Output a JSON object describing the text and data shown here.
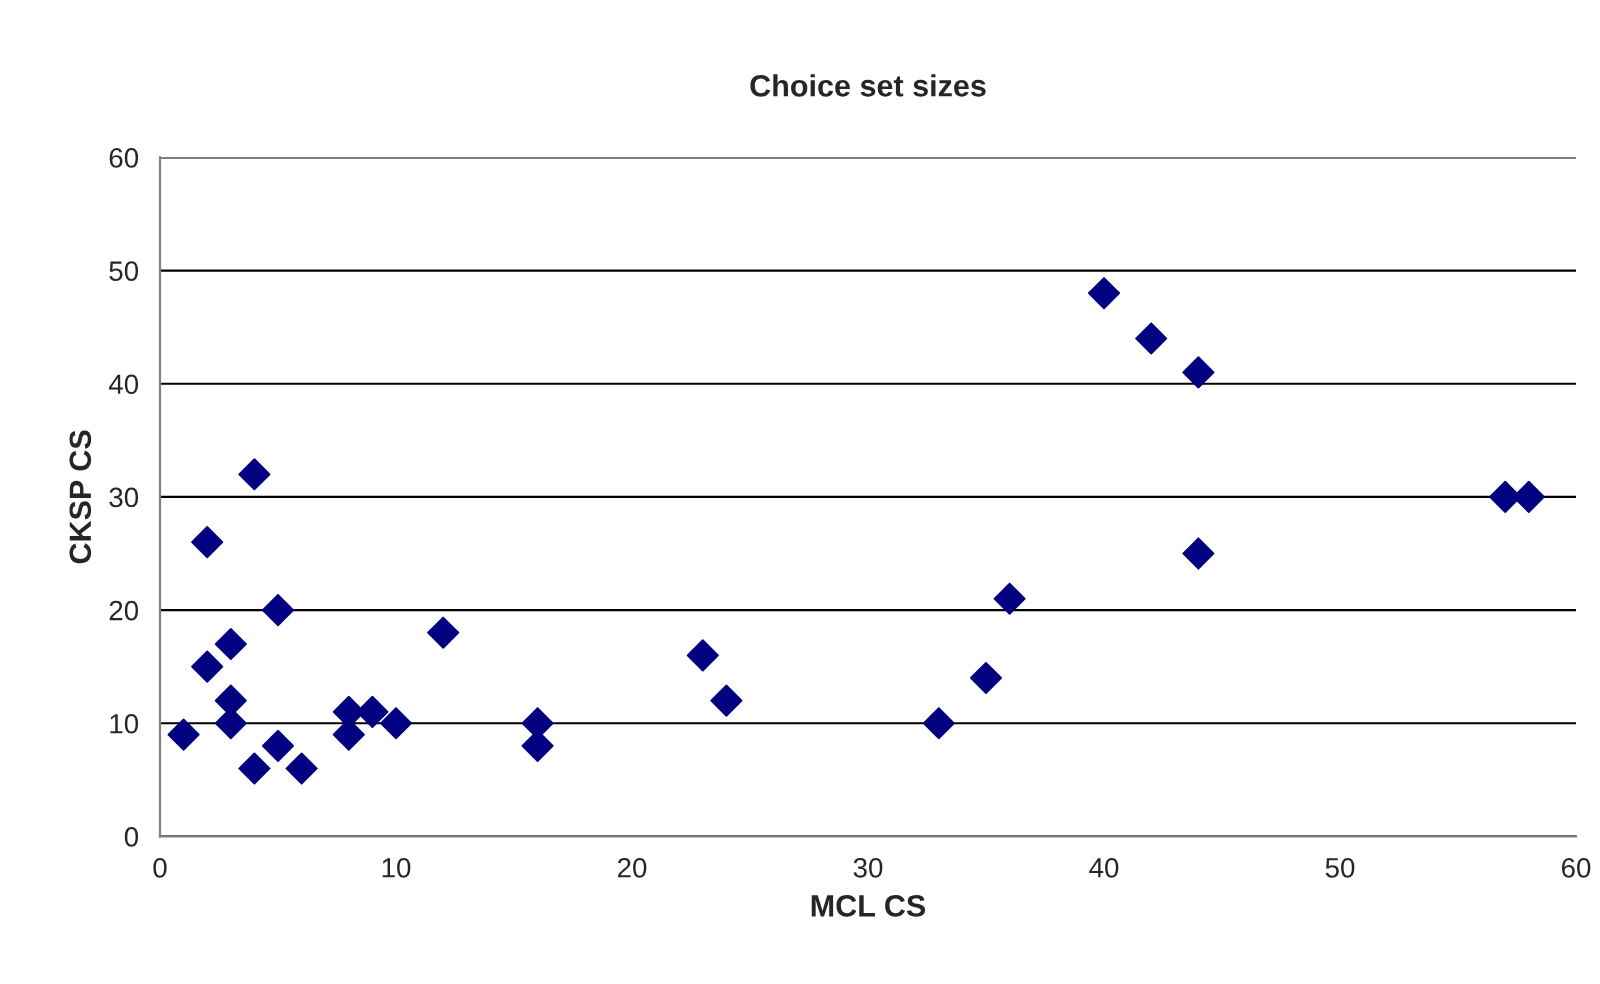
{
  "chart_data": {
    "type": "scatter",
    "title": "Choice set sizes",
    "xlabel": "MCL CS",
    "ylabel": "CKSP CS",
    "x": [
      1,
      2,
      2,
      3,
      3,
      3,
      4,
      4,
      5,
      5,
      6,
      8,
      8,
      9,
      10,
      12,
      16,
      16,
      23,
      24,
      33,
      35,
      36,
      40,
      42,
      44,
      44,
      57,
      58
    ],
    "series": [
      {
        "color": "#000080",
        "values": [
          9,
          26,
          15,
          17,
          12,
          10,
          32,
          6,
          20,
          8,
          6,
          11,
          9,
          11,
          10,
          18,
          10,
          8,
          16,
          12,
          10,
          14,
          21,
          48,
          44,
          41,
          25,
          30,
          30
        ]
      }
    ],
    "xlim": [
      0,
      60
    ],
    "xticks": [
      0,
      10,
      20,
      30,
      40,
      50,
      60
    ],
    "ylim": [
      0,
      60
    ],
    "yticks": [
      0,
      10,
      20,
      30,
      40,
      50,
      60
    ],
    "grid": "y",
    "marker": "diamond"
  }
}
